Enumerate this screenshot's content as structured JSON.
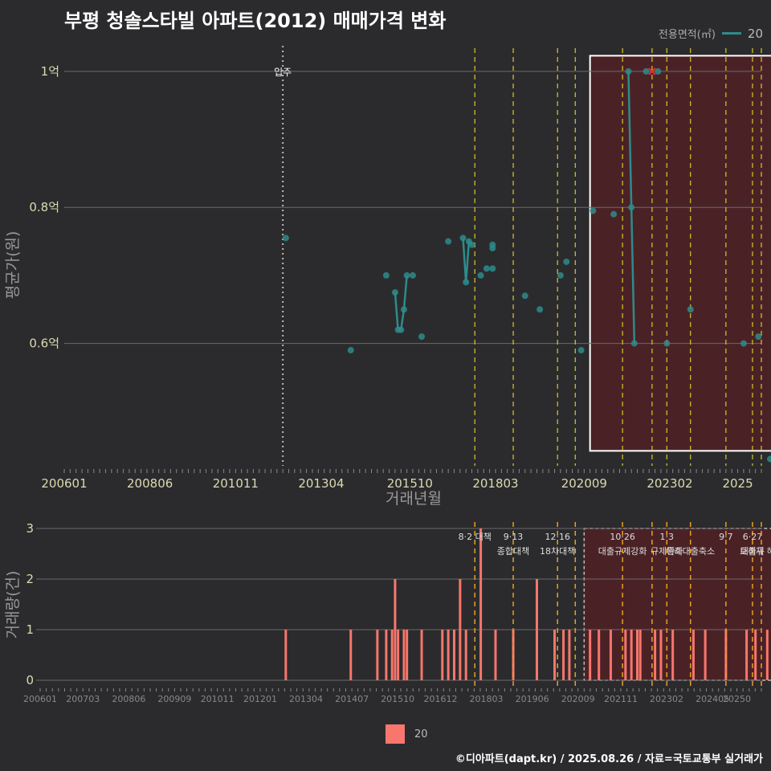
{
  "title": "부평 청솔스타빌 아파트(2012) 매매가격 변화",
  "legend_top": {
    "title": "전용면적(㎡)",
    "series": "20",
    "color": "#2e8b8b"
  },
  "legend_bottom": {
    "series": "20",
    "color": "#f8766d"
  },
  "footer": "©디아파트(dapt.kr) / 2025.08.26 / 자료=국토교통부 실거래가",
  "chart_data": [
    {
      "type": "line",
      "ylabel": "평균가(원)",
      "xlabel": "거래년월",
      "x_ticks": [
        "200601",
        "200806",
        "201011",
        "201304",
        "201510",
        "201803",
        "202009",
        "202302",
        "2025"
      ],
      "y_ticks": [
        {
          "v": 0.6,
          "label": "0.6억"
        },
        {
          "v": 0.8,
          "label": "0.8억"
        },
        {
          "v": 1.0,
          "label": "1억"
        }
      ],
      "ylim": [
        0.42,
        1.04
      ],
      "series": [
        {
          "name": "20",
          "points": [
            {
              "x": "2012-04",
              "y": 0.755
            },
            {
              "x": "2014-02",
              "y": 0.59
            },
            {
              "x": "2015-02",
              "y": 0.7
            },
            {
              "x": "2015-05",
              "y": 0.675
            },
            {
              "x": "2015-06",
              "y": 0.62
            },
            {
              "x": "2015-07",
              "y": 0.62
            },
            {
              "x": "2015-08",
              "y": 0.65
            },
            {
              "x": "2015-09",
              "y": 0.7
            },
            {
              "x": "2015-11",
              "y": 0.7
            },
            {
              "x": "2016-02",
              "y": 0.61
            },
            {
              "x": "2016-11",
              "y": 0.75
            },
            {
              "x": "2017-04",
              "y": 0.755
            },
            {
              "x": "2017-05",
              "y": 0.69
            },
            {
              "x": "2017-06",
              "y": 0.75
            },
            {
              "x": "2017-07",
              "y": 0.745
            },
            {
              "x": "2017-10",
              "y": 0.7
            },
            {
              "x": "2017-12",
              "y": 0.71
            },
            {
              "x": "2018-02",
              "y": 0.745
            },
            {
              "x": "2018-02",
              "y": 0.74
            },
            {
              "x": "2018-02",
              "y": 0.71
            },
            {
              "x": "2019-01",
              "y": 0.67
            },
            {
              "x": "2019-06",
              "y": 0.65
            },
            {
              "x": "2020-01",
              "y": 0.7
            },
            {
              "x": "2020-03",
              "y": 0.72
            },
            {
              "x": "2020-08",
              "y": 0.59
            },
            {
              "x": "2020-12",
              "y": 0.795
            },
            {
              "x": "2021-07",
              "y": 0.79
            },
            {
              "x": "2021-12",
              "y": 1.0
            },
            {
              "x": "2022-01",
              "y": 0.8
            },
            {
              "x": "2022-02",
              "y": 0.6
            },
            {
              "x": "2022-06",
              "y": 1.0
            },
            {
              "x": "2022-10",
              "y": 1.0
            },
            {
              "x": "2023-01",
              "y": 0.6
            },
            {
              "x": "2023-09",
              "y": 0.65
            },
            {
              "x": "2025-03",
              "y": 0.6
            },
            {
              "x": "2025-08",
              "y": 0.61
            },
            {
              "x": "2025-12",
              "y": 0.43
            }
          ]
        }
      ],
      "annotations": [
        {
          "x": "2012-03",
          "label": "입주"
        }
      ]
    },
    {
      "type": "bar",
      "ylabel": "거래량(건)",
      "x_ticks": [
        "200601",
        "200703",
        "200806",
        "200909",
        "201011",
        "201201",
        "201304",
        "201407",
        "201510",
        "201612",
        "201803",
        "201906",
        "202009",
        "202111",
        "202302",
        "202405",
        "20250"
      ],
      "ylim": [
        0,
        3
      ],
      "y_ticks": [
        0,
        1,
        2,
        3
      ],
      "bars": [
        {
          "x": "2012-04",
          "v": 1
        },
        {
          "x": "2014-02",
          "v": 1
        },
        {
          "x": "2014-11",
          "v": 1
        },
        {
          "x": "2015-02",
          "v": 1
        },
        {
          "x": "2015-04",
          "v": 1
        },
        {
          "x": "2015-05",
          "v": 2
        },
        {
          "x": "2015-06",
          "v": 1
        },
        {
          "x": "2015-08",
          "v": 1
        },
        {
          "x": "2015-09",
          "v": 1
        },
        {
          "x": "2016-02",
          "v": 1
        },
        {
          "x": "2016-09",
          "v": 1
        },
        {
          "x": "2016-11",
          "v": 1
        },
        {
          "x": "2017-01",
          "v": 1
        },
        {
          "x": "2017-03",
          "v": 2
        },
        {
          "x": "2017-05",
          "v": 1
        },
        {
          "x": "2017-10",
          "v": 3
        },
        {
          "x": "2018-03",
          "v": 1
        },
        {
          "x": "2018-09",
          "v": 1
        },
        {
          "x": "2019-05",
          "v": 2
        },
        {
          "x": "2019-11",
          "v": 1
        },
        {
          "x": "2020-02",
          "v": 1
        },
        {
          "x": "2020-04",
          "v": 1
        },
        {
          "x": "2020-11",
          "v": 1
        },
        {
          "x": "2021-02",
          "v": 1
        },
        {
          "x": "2021-06",
          "v": 1
        },
        {
          "x": "2021-11",
          "v": 1
        },
        {
          "x": "2022-01",
          "v": 1
        },
        {
          "x": "2022-03",
          "v": 1
        },
        {
          "x": "2022-04",
          "v": 1
        },
        {
          "x": "2022-09",
          "v": 1
        },
        {
          "x": "2022-11",
          "v": 1
        },
        {
          "x": "2023-03",
          "v": 1
        },
        {
          "x": "2023-10",
          "v": 1
        },
        {
          "x": "2024-02",
          "v": 1
        },
        {
          "x": "2024-09",
          "v": 1
        },
        {
          "x": "2025-04",
          "v": 1
        },
        {
          "x": "2025-07",
          "v": 1
        },
        {
          "x": "2025-11",
          "v": 1
        }
      ],
      "policy_lines": [
        {
          "x": "2017-08",
          "label1": "8·2 대책",
          "label2": ""
        },
        {
          "x": "2018-09",
          "label1": "9·13",
          "label2": "종합대책"
        },
        {
          "x": "2019-12",
          "label1": "12·16",
          "label2": "18차대책"
        },
        {
          "x": "2020-06",
          "label1": "",
          "label2": ""
        },
        {
          "x": "2021-10",
          "label1": "10·26",
          "label2": "대출규제강화"
        },
        {
          "x": "2022-08",
          "label1": "",
          "label2": ""
        },
        {
          "x": "2023-01",
          "label1": "1·3",
          "label2": "규제완화"
        },
        {
          "x": "2023-09",
          "label1": "",
          "label2": "특례대출축소"
        },
        {
          "x": "2024-09",
          "label1": "9·7",
          "label2": ""
        },
        {
          "x": "2025-06",
          "label1": "6·27",
          "label2": "대출규"
        },
        {
          "x": "2025-09",
          "label1": "",
          "label2": "토허제 해제"
        }
      ]
    }
  ]
}
